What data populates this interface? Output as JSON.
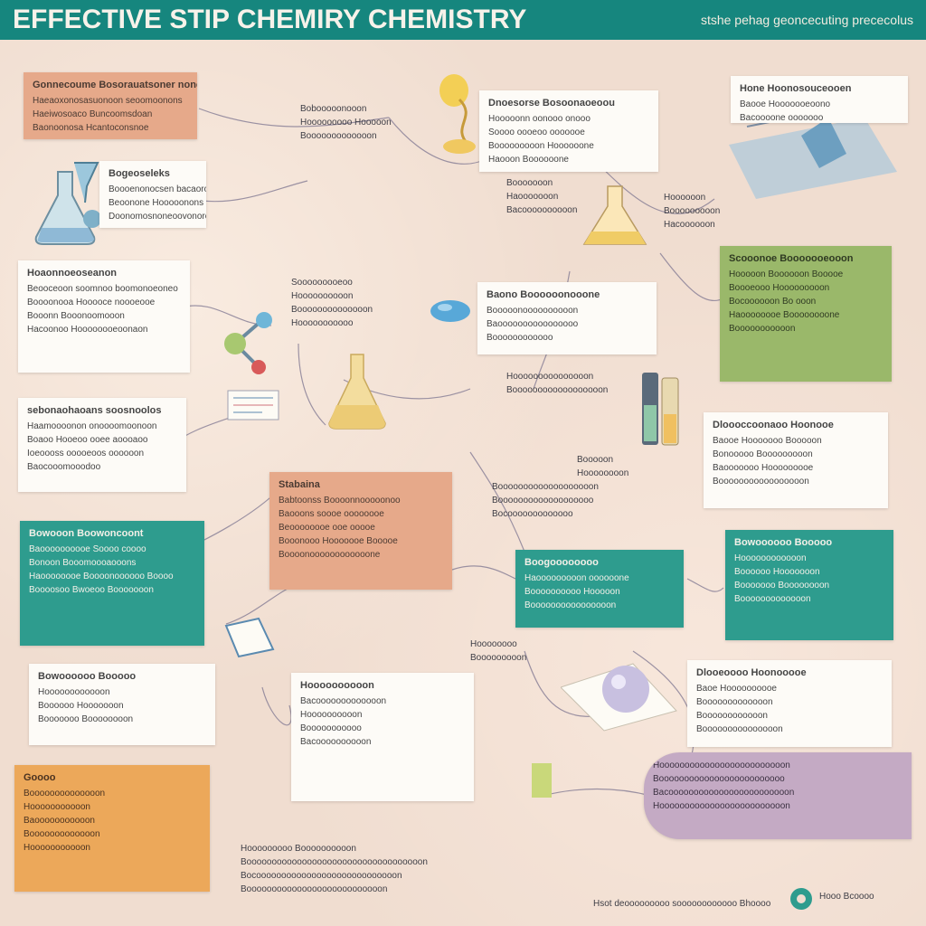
{
  "header": {
    "title": "EFFECTIVE STIP CHEMIRY CHEMISTRY",
    "subtitle": "stshe pehag geoncecuting prececolus"
  },
  "cards": {
    "c1": {
      "title": "Gonnecoume Bosorauatsoner nonomant",
      "lines": [
        "Haeaoxonosasuonoon seoomoonons",
        "Haeiwosoaco Buncoomsdoan",
        "Baonoonosa Hcantoconsnoe"
      ]
    },
    "c2": {
      "title": "Bogeoseleks",
      "lines": [
        "Boooenonocsen bacaoron Beonl",
        "Beoonone Hooooonons",
        "Doonomosnoneoovonoron"
      ]
    },
    "c3": {
      "title": "Hoaonnoeoseanon",
      "lines": [
        "Beooceoon soomnoo boomonoeoneo",
        "Boooonooa Hooooce noooeooe",
        "Booonn Booonoomooon",
        "Hacoonoo Hoooooooeoonaon"
      ]
    },
    "c4": {
      "title": "sebonaohaoans soosnoolos",
      "lines": [
        "Haamoooonon onoooomoonoon",
        "Boaoo Hooeoo ooee aoooaoo",
        "Ioeoooss ooooeoos oooooon",
        "Baocooomooodoo"
      ]
    },
    "c5": {
      "title": "Bowooon Boowoncoont",
      "lines": [
        "Baoooooooooe Soooo coooo",
        "Bonoon Booomoooaooons",
        "Haoooooooe Boooonoooooo Boooo",
        "Boooosoo Bwoeoo Booooooon"
      ]
    },
    "c6": {
      "title": "Stabaina",
      "lines": [
        "Babtoonss Boooonnooooonoo",
        "Baooons soooe oooooooe",
        "Beoooooooe ooe ooooe",
        "Booonooo Hooooooe Booooe",
        "Boooonoooooooooooone"
      ]
    },
    "c7": {
      "title": "Dnoesorse Bosoonaoeoou",
      "lines": [
        "Hooooonn oonooo onooo",
        "Soooo oooeoo ooooooe",
        "Booooooooon Hoooooone",
        "Haooon Boooooone"
      ]
    },
    "c8": {
      "title": "Hone Hoonosouceooen",
      "lines": [
        "Baooe Hooooooeoono",
        "Bacoooone ooooooo"
      ]
    },
    "c9": {
      "title": "Baono Boooooonooone",
      "lines": [
        "Booooonoooooooooon",
        "Baoooooooooooooooo",
        "Boooooooooooo"
      ]
    },
    "c10": {
      "title": "Scooonoe Booooooeooon",
      "lines": [
        "Hooooon Boooooon Booooe",
        "Boooeooo Hooooooooon",
        "Bocoooooon Bo ooon",
        "Haoooooooe Boooooooone",
        "Booooooooooon"
      ]
    },
    "c11": {
      "title": "Dloooccoonaoo Hoonooe",
      "lines": [
        "Baooe Hooooooo Booooon",
        "Bonooooo Booooooooon",
        "Baooooooo Hooooooooe",
        "Booooooooooooooooon"
      ]
    },
    "c12": {
      "title": "Boogoooooooo",
      "lines": [
        "Haooooooooon oooooone",
        "Boooooooooo Hooooon",
        "Boooooooooooooooon"
      ]
    },
    "c13": {
      "title": "Bowoooooo Booooo",
      "lines": [
        "Hoooooooooooon",
        "Boooooo Hooooooon",
        "Booooooo Boooooooon",
        "Booooooooooooon"
      ]
    },
    "c14": {
      "title": "Hoooooooooon",
      "lines": [
        "Bacooooooooooooon",
        "Hoooooooooon",
        "Booooooooooo",
        "Bacoooooooooon"
      ]
    },
    "c15": {
      "title": "Goooo",
      "lines": [
        "Boooooooooooooon",
        "Hooooooooooon",
        "Baooooooooooon",
        "Booooooooooooon",
        "Hooooooooooon"
      ]
    },
    "c16": {
      "title": "Dlooeoooo Hoonooooe",
      "lines": [
        "Baoe Hoooooooooe",
        "Booooooooooooon",
        "Boooooooooooon",
        "Booooooooooooooon"
      ]
    },
    "c17": {
      "title": "",
      "lines": [
        "Hooooooooooooooooooooooooon",
        "Booooooooooooooooooooooooo",
        "Bacoooooooooooooooooooooooon",
        "Hooooooooooooooooooooooooon"
      ]
    }
  },
  "notes": {
    "n1": [
      "Bobooooonooon",
      "Hooooooooo Hooooon",
      "Booooooooooooon"
    ],
    "n2": [
      "Sooooooooeoo",
      "Hoooooooooon",
      "Boooooooooooooon",
      "Hooooooooooo"
    ],
    "n3": [
      "Booooooon",
      "Haooooooon",
      "Bacoooooooooon"
    ],
    "n4": [
      "Hoooooon",
      "Booooooooon",
      "Hacoooooon"
    ],
    "n5": [
      "Hooooooooooooooon",
      "Boooooooooooooooooon"
    ],
    "n6": [
      "Booooon",
      "Hoooooooon"
    ],
    "n7": [
      "Booooooooooooooooooon",
      "Booooooooooooooooooo",
      "Bocooooooooooooo"
    ],
    "n8": [
      "Hoooooooo",
      "Booooooooon"
    ],
    "n9": [
      "Hooooooooo Boooooooooon",
      "Booooooooooooooooooooooooooooooooooon",
      "Bocoooooooooooooooooooooooooooon",
      "Booooooooooooooooooooooooooon"
    ]
  },
  "footer": {
    "left": "Hsot deooooooooo soooooooooooo Bhoooo",
    "right": "Hooo Bcoooo"
  }
}
